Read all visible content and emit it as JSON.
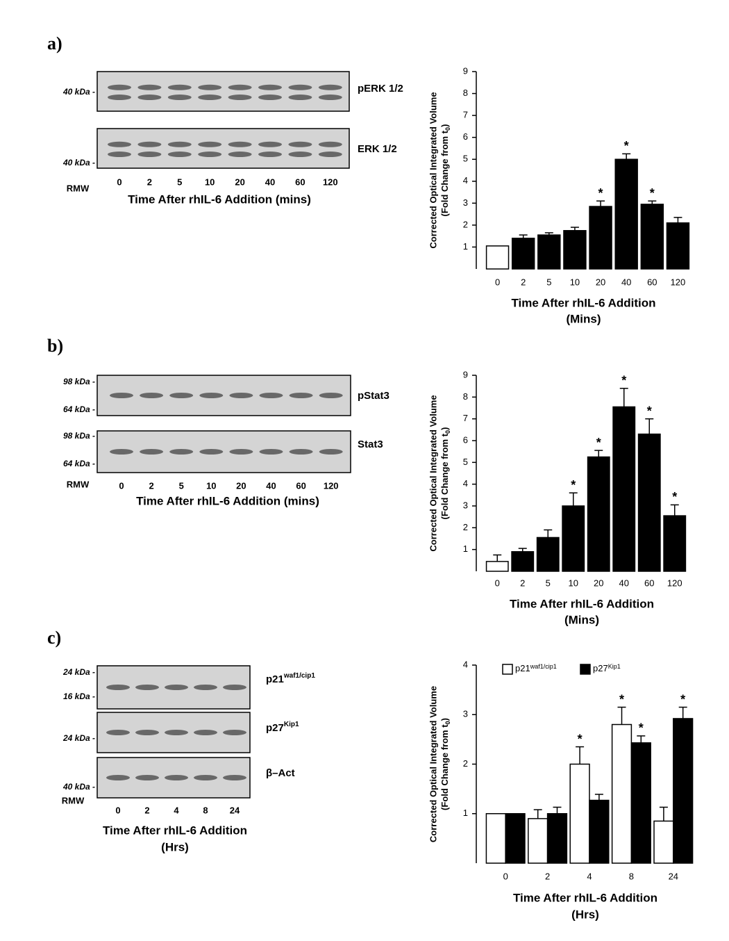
{
  "panel_labels": [
    "a)",
    "b)",
    "c)"
  ],
  "blots": [
    {
      "strips": [
        {
          "name": "pERK 1/2",
          "markers": [
            "40 kDa -"
          ]
        },
        {
          "name": "ERK 1/2",
          "markers": [
            "40 kDa -"
          ]
        }
      ],
      "mw_label": "RMW",
      "lanes": [
        "0",
        "2",
        "5",
        "10",
        "20",
        "40",
        "60",
        "120"
      ],
      "xlabel": "Time After rhIL-6 Addition (mins)"
    },
    {
      "strips": [
        {
          "name": "pStat3",
          "markers": [
            "98 kDa -",
            "64 kDa -"
          ]
        },
        {
          "name": "Stat3",
          "markers": [
            "98 kDa -",
            "64 kDa -"
          ]
        }
      ],
      "mw_label": "RMW",
      "lanes": [
        "0",
        "2",
        "5",
        "10",
        "20",
        "40",
        "60",
        "120"
      ],
      "xlabel": "Time After rhIL-6 Addition (mins)"
    },
    {
      "strips": [
        {
          "name": "p21",
          "name_sup": "waf1/cip1",
          "markers": [
            "24 kDa -",
            "16 kDa -"
          ]
        },
        {
          "name": "p27",
          "name_sup": "Kip1",
          "markers": [
            "24 kDa -"
          ]
        },
        {
          "name": "β–Act",
          "markers": [
            "40 kDa -"
          ]
        }
      ],
      "mw_label": "RMW",
      "lanes": [
        "0",
        "2",
        "4",
        "8",
        "24"
      ],
      "xlabel": "Time After rhIL-6 Addition",
      "xlabel_2": "(Hrs)"
    }
  ],
  "chart_data": [
    {
      "type": "bar",
      "ylabel": "Corrected Optical Integrated Volume",
      "ylabel_2": "(Fold Change from t",
      "ylabel_sub": "0",
      "ylabel_end": ")",
      "xlabel": "Time After rhIL-6 Addition",
      "xlabel_2": "(Mins)",
      "categories": [
        "0",
        "2",
        "5",
        "10",
        "20",
        "40",
        "60",
        "120"
      ],
      "values": [
        1.05,
        1.4,
        1.55,
        1.75,
        2.85,
        5.0,
        2.95,
        2.1
      ],
      "errors": [
        0.0,
        0.15,
        0.1,
        0.15,
        0.25,
        0.25,
        0.15,
        0.25
      ],
      "colors": [
        "#ffffff",
        "#000000",
        "#000000",
        "#000000",
        "#000000",
        "#000000",
        "#000000",
        "#000000"
      ],
      "significant": [
        false,
        false,
        false,
        false,
        true,
        true,
        true,
        false
      ],
      "significance_mark": "*",
      "ylim": [
        0,
        9
      ],
      "yticks": [
        1,
        2,
        3,
        4,
        5,
        6,
        7,
        8,
        9
      ]
    },
    {
      "type": "bar",
      "ylabel": "Corrected Optical Integrated Volume",
      "ylabel_2": "(Fold Change from t",
      "ylabel_sub": "0",
      "ylabel_end": ")",
      "xlabel": "Time After rhIL-6 Addition",
      "xlabel_2": "(Mins)",
      "categories": [
        "0",
        "2",
        "5",
        "10",
        "20",
        "40",
        "60",
        "120"
      ],
      "values": [
        0.45,
        0.9,
        1.55,
        3.0,
        5.25,
        7.55,
        6.3,
        2.55
      ],
      "errors": [
        0.3,
        0.15,
        0.35,
        0.6,
        0.3,
        0.85,
        0.7,
        0.5
      ],
      "colors": [
        "#ffffff",
        "#000000",
        "#000000",
        "#000000",
        "#000000",
        "#000000",
        "#000000",
        "#000000"
      ],
      "significant": [
        false,
        false,
        false,
        true,
        true,
        true,
        true,
        true
      ],
      "significance_mark": "*",
      "ylim": [
        0,
        9
      ],
      "yticks": [
        1,
        2,
        3,
        4,
        5,
        6,
        7,
        8,
        9
      ]
    },
    {
      "type": "grouped_bar",
      "ylabel": "Corrected Optical Integrated Volume",
      "ylabel_2": "(Fold Change from t",
      "ylabel_sub": "0",
      "ylabel_end": ")",
      "xlabel": "Time After rhIL-6 Addition",
      "xlabel_2": "(Hrs)",
      "categories": [
        "0",
        "2",
        "4",
        "8",
        "24"
      ],
      "series": [
        {
          "name": "p21",
          "name_sup": "waf1/cip1",
          "color": "#ffffff",
          "values": [
            1.0,
            0.9,
            2.0,
            2.8,
            0.85
          ],
          "errors": [
            0.0,
            0.18,
            0.35,
            0.35,
            0.28
          ],
          "significant": [
            false,
            false,
            true,
            true,
            false
          ]
        },
        {
          "name": "p27",
          "name_sup": "Kip1",
          "color": "#000000",
          "values": [
            1.0,
            1.0,
            1.27,
            2.43,
            2.92
          ],
          "errors": [
            0.0,
            0.13,
            0.12,
            0.14,
            0.23
          ],
          "significant": [
            false,
            false,
            false,
            true,
            true
          ]
        }
      ],
      "significance_mark": "*",
      "legend": "top",
      "ylim": [
        0,
        4
      ],
      "yticks": [
        1,
        2,
        3,
        4
      ]
    }
  ]
}
